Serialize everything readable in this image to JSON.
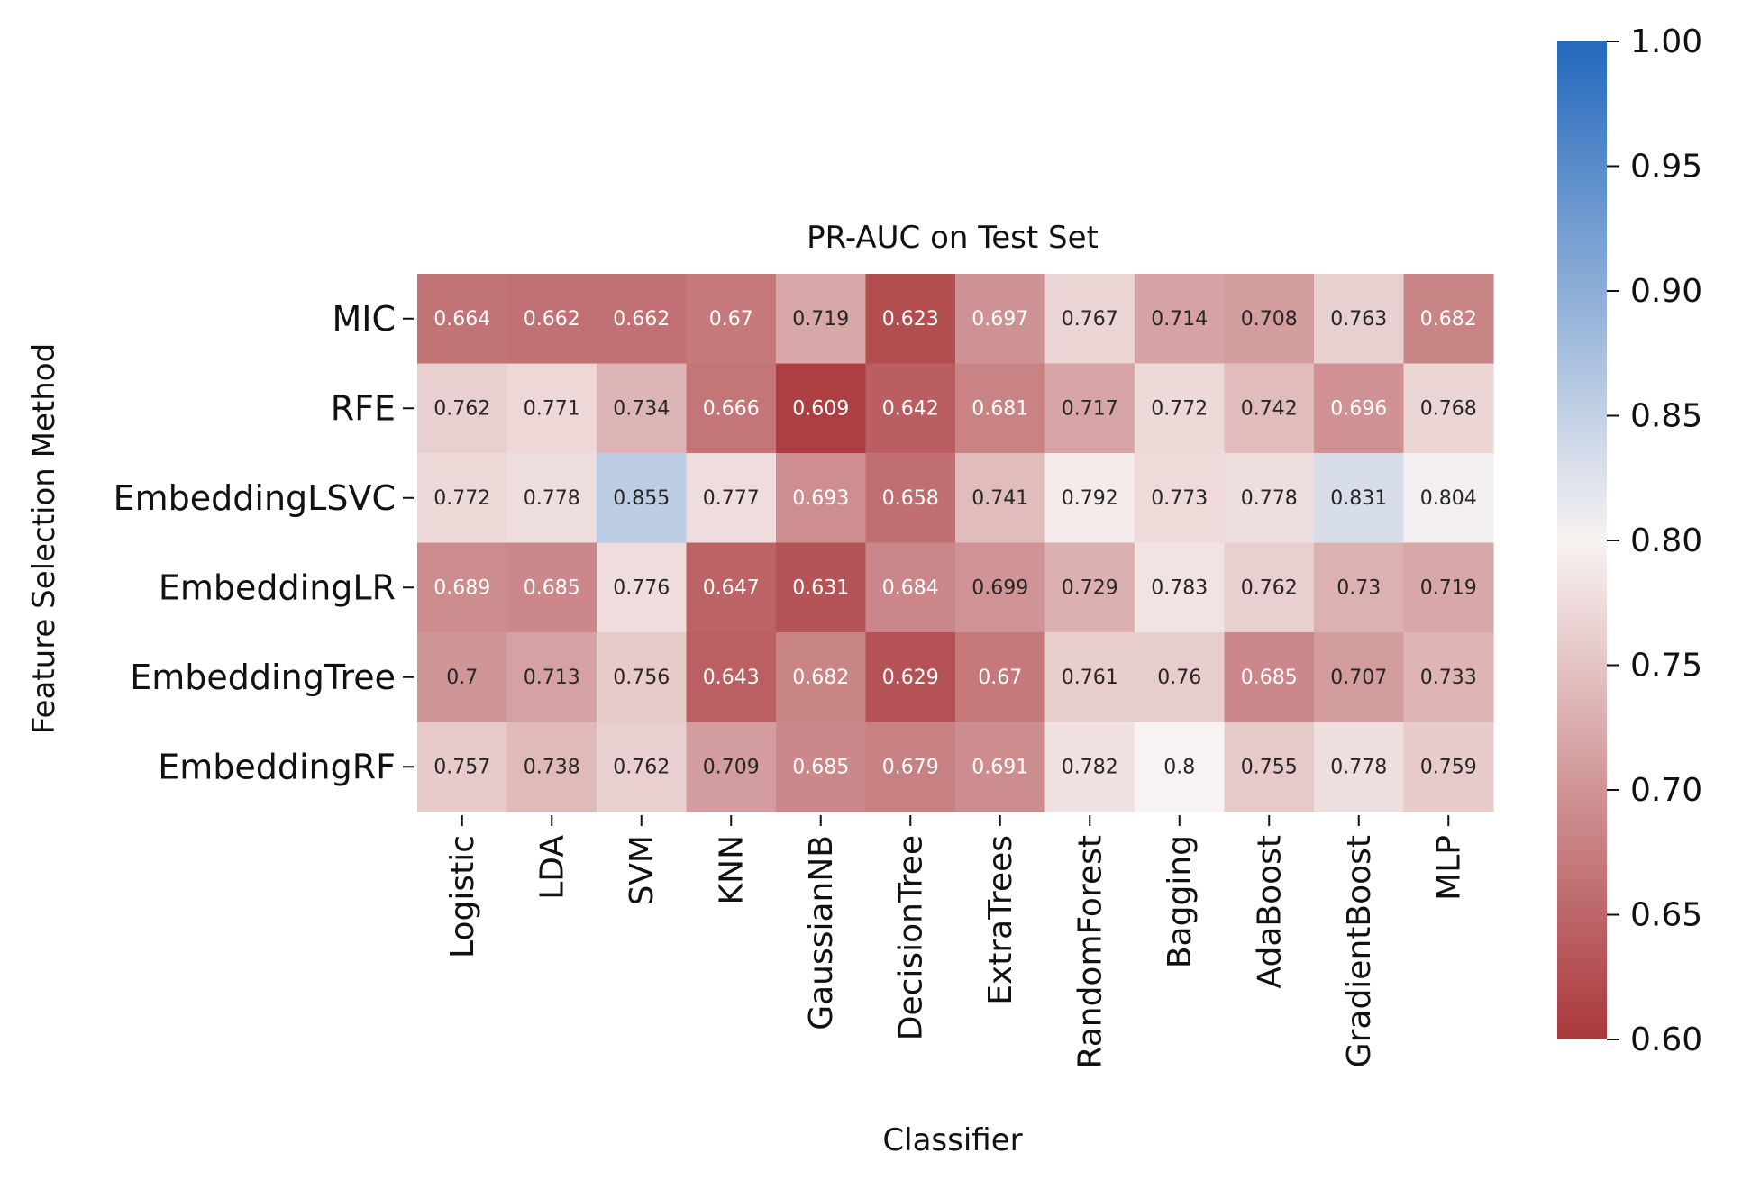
{
  "chart_data": {
    "type": "heatmap",
    "title": "PR-AUC on Test Set",
    "xlabel": "Classifier",
    "ylabel": "Feature Selection Method",
    "rows": [
      "MIC",
      "RFE",
      "EmbeddingLSVC",
      "EmbeddingLR",
      "EmbeddingTree",
      "EmbeddingRF"
    ],
    "columns": [
      "Logistic",
      "LDA",
      "SVM",
      "KNN",
      "GaussianNB",
      "DecisionTree",
      "ExtraTrees",
      "RandomForest",
      "Bagging",
      "AdaBoost",
      "GradientBoost",
      "MLP"
    ],
    "values": [
      [
        0.664,
        0.662,
        0.662,
        0.67,
        0.719,
        0.623,
        0.697,
        0.767,
        0.714,
        0.708,
        0.763,
        0.682
      ],
      [
        0.762,
        0.771,
        0.734,
        0.666,
        0.609,
        0.642,
        0.681,
        0.717,
        0.772,
        0.742,
        0.696,
        0.768
      ],
      [
        0.772,
        0.778,
        0.855,
        0.777,
        0.693,
        0.658,
        0.741,
        0.792,
        0.773,
        0.778,
        0.831,
        0.804
      ],
      [
        0.689,
        0.685,
        0.776,
        0.647,
        0.631,
        0.684,
        0.699,
        0.729,
        0.783,
        0.762,
        0.73,
        0.719
      ],
      [
        0.7,
        0.713,
        0.756,
        0.643,
        0.682,
        0.629,
        0.67,
        0.761,
        0.76,
        0.685,
        0.707,
        0.733
      ],
      [
        0.757,
        0.738,
        0.762,
        0.709,
        0.685,
        0.679,
        0.691,
        0.782,
        0.8,
        0.755,
        0.778,
        0.759
      ]
    ],
    "value_labels": [
      [
        "0.664",
        "0.662",
        "0.662",
        "0.67",
        "0.719",
        "0.623",
        "0.697",
        "0.767",
        "0.714",
        "0.708",
        "0.763",
        "0.682"
      ],
      [
        "0.762",
        "0.771",
        "0.734",
        "0.666",
        "0.609",
        "0.642",
        "0.681",
        "0.717",
        "0.772",
        "0.742",
        "0.696",
        "0.768"
      ],
      [
        "0.772",
        "0.778",
        "0.855",
        "0.777",
        "0.693",
        "0.658",
        "0.741",
        "0.792",
        "0.773",
        "0.778",
        "0.831",
        "0.804"
      ],
      [
        "0.689",
        "0.685",
        "0.776",
        "0.647",
        "0.631",
        "0.684",
        "0.699",
        "0.729",
        "0.783",
        "0.762",
        "0.73",
        "0.719"
      ],
      [
        "0.7",
        "0.713",
        "0.756",
        "0.643",
        "0.682",
        "0.629",
        "0.67",
        "0.761",
        "0.76",
        "0.685",
        "0.707",
        "0.733"
      ],
      [
        "0.757",
        "0.738",
        "0.762",
        "0.709",
        "0.685",
        "0.679",
        "0.691",
        "0.782",
        "0.8",
        "0.755",
        "0.778",
        "0.759"
      ]
    ],
    "colorbar": {
      "min": 0.6,
      "max": 1.0,
      "ticks": [
        0.6,
        0.65,
        0.7,
        0.75,
        0.8,
        0.85,
        0.9,
        0.95,
        1.0
      ],
      "tick_labels": [
        "0.60",
        "0.65",
        "0.70",
        "0.75",
        "0.80",
        "0.85",
        "0.90",
        "0.95",
        "1.00"
      ],
      "colors": {
        "low": "#a9373b",
        "mid": "#f8f3f2",
        "high": "#2369bd"
      }
    },
    "grid": false,
    "legend": "colorbar-right"
  }
}
